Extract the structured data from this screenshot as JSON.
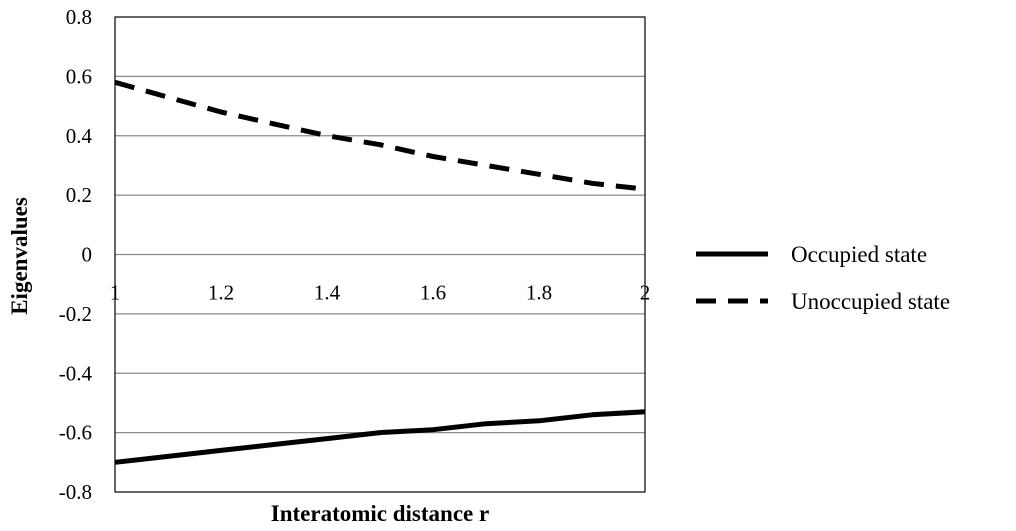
{
  "chart_data": {
    "type": "line",
    "title": "",
    "xlabel": "Interatomic distance r",
    "ylabel": "Eigenvalues",
    "xlim": [
      1,
      2
    ],
    "ylim": [
      -0.8,
      0.8
    ],
    "x_ticks": [
      "1",
      "1.2",
      "1.4",
      "1.6",
      "1.8",
      "2"
    ],
    "x_tick_values": [
      1,
      1.2,
      1.4,
      1.6,
      1.8,
      2
    ],
    "y_ticks": [
      "0.8",
      "0.6",
      "0.4",
      "0.2",
      "0",
      "-0.2",
      "-0.4",
      "-0.6",
      "-0.8"
    ],
    "y_tick_values": [
      0.8,
      0.6,
      0.4,
      0.2,
      0,
      -0.2,
      -0.4,
      -0.6,
      -0.8
    ],
    "grid": "horizontal",
    "legend_position": "right",
    "series": [
      {
        "name": "Occupied state",
        "style": "solid",
        "color": "#000000",
        "x": [
          1,
          1.1,
          1.2,
          1.3,
          1.4,
          1.5,
          1.6,
          1.7,
          1.8,
          1.9,
          2
        ],
        "y": [
          -0.7,
          -0.68,
          -0.66,
          -0.64,
          -0.62,
          -0.6,
          -0.59,
          -0.57,
          -0.56,
          -0.54,
          -0.53
        ]
      },
      {
        "name": "Unoccupied state",
        "style": "dashed",
        "color": "#000000",
        "x": [
          1,
          1.1,
          1.2,
          1.3,
          1.4,
          1.5,
          1.6,
          1.7,
          1.8,
          1.9,
          2
        ],
        "y": [
          0.58,
          0.53,
          0.48,
          0.44,
          0.4,
          0.37,
          0.33,
          0.3,
          0.27,
          0.24,
          0.22
        ]
      }
    ]
  }
}
